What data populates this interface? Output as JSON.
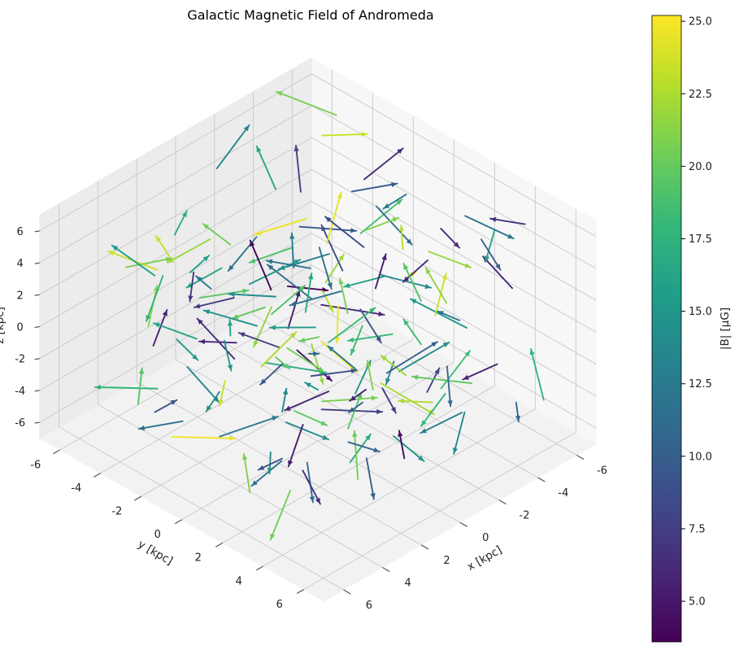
{
  "chart_data": {
    "type": "quiver3d",
    "title": "Galactic Magnetic Field of Andromeda",
    "xlabel": "x [kpc]",
    "ylabel": "y [kpc]",
    "zlabel": "z [kpc]",
    "xlim": [
      -7,
      7
    ],
    "ylim": [
      -7,
      7
    ],
    "zlim": [
      -7,
      7
    ],
    "xticks": [
      -6,
      -4,
      -2,
      0,
      2,
      4,
      6
    ],
    "yticks": [
      -6,
      -4,
      -2,
      0,
      2,
      4,
      6
    ],
    "zticks": [
      -6,
      -4,
      -2,
      0,
      2,
      4,
      6
    ],
    "grid": true,
    "view": {
      "elev": 30,
      "azim": 45
    },
    "colormap": "viridis",
    "colorbar": {
      "label": "|B| [μG]",
      "min": 3.6,
      "max": 25.2,
      "ticks": [
        5.0,
        7.5,
        10.0,
        12.5,
        15.0,
        17.5,
        20.0,
        22.5,
        25.0
      ],
      "tick_labels": [
        "5.0",
        "7.5",
        "10.0",
        "12.5",
        "15.0",
        "17.5",
        "20.0",
        "22.5",
        "25.0"
      ]
    },
    "vectors": {
      "count": 150,
      "x_range": [
        -6,
        6
      ],
      "y_range": [
        -6,
        6
      ],
      "z_range": [
        -6,
        6
      ],
      "magnitude_range": [
        3.6,
        25.2
      ]
    }
  }
}
